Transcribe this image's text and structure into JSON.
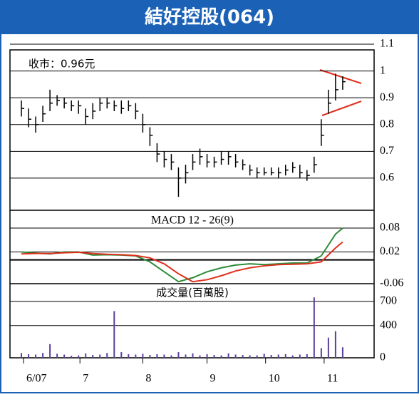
{
  "title": "結好控股(064)",
  "chart_data": [
    {
      "type": "ohlc",
      "annotation": "收市：0.96元",
      "color": "#000000",
      "x": [
        0,
        1,
        2,
        3,
        4,
        5,
        6,
        7,
        8,
        9,
        10,
        11,
        12,
        13,
        14,
        15,
        16,
        17,
        18,
        19,
        20,
        21,
        22,
        23,
        24,
        25,
        26,
        27,
        28,
        29,
        30,
        31,
        32,
        33,
        34,
        35,
        36,
        37,
        38,
        39,
        40,
        41,
        42,
        43,
        44,
        45
      ],
      "close": [
        0.86,
        0.82,
        0.8,
        0.84,
        0.88,
        0.89,
        0.88,
        0.87,
        0.87,
        0.83,
        0.85,
        0.88,
        0.88,
        0.87,
        0.86,
        0.87,
        0.85,
        0.8,
        0.76,
        0.69,
        0.67,
        0.66,
        0.6,
        0.62,
        0.66,
        0.68,
        0.66,
        0.66,
        0.67,
        0.68,
        0.66,
        0.65,
        0.63,
        0.62,
        0.62,
        0.62,
        0.62,
        0.63,
        0.64,
        0.62,
        0.61,
        0.65,
        0.76,
        0.88,
        0.93,
        0.96
      ],
      "high": [
        0.89,
        0.86,
        0.83,
        0.87,
        0.93,
        0.91,
        0.9,
        0.89,
        0.89,
        0.86,
        0.88,
        0.9,
        0.9,
        0.89,
        0.89,
        0.89,
        0.88,
        0.84,
        0.79,
        0.73,
        0.7,
        0.69,
        0.64,
        0.65,
        0.69,
        0.71,
        0.69,
        0.68,
        0.7,
        0.7,
        0.69,
        0.67,
        0.65,
        0.64,
        0.64,
        0.64,
        0.64,
        0.65,
        0.66,
        0.65,
        0.63,
        0.68,
        0.82,
        0.93,
        0.99,
        0.98
      ],
      "low": [
        0.83,
        0.79,
        0.77,
        0.81,
        0.85,
        0.87,
        0.86,
        0.85,
        0.84,
        0.8,
        0.82,
        0.85,
        0.86,
        0.85,
        0.84,
        0.85,
        0.82,
        0.77,
        0.72,
        0.66,
        0.64,
        0.63,
        0.53,
        0.58,
        0.63,
        0.65,
        0.64,
        0.64,
        0.65,
        0.65,
        0.64,
        0.63,
        0.61,
        0.6,
        0.61,
        0.61,
        0.6,
        0.61,
        0.62,
        0.6,
        0.59,
        0.62,
        0.72,
        0.84,
        0.89,
        0.93
      ],
      "xlim": [
        -1.6,
        49.4
      ],
      "ylim": [
        0.48,
        1.1
      ],
      "yticks": [
        0.6,
        0.7,
        0.8,
        0.9,
        1.0,
        1.1
      ],
      "grid": true
    },
    {
      "type": "line",
      "title": "MACD 12 - 26(9)",
      "x": [
        0,
        2,
        4,
        6,
        8,
        10,
        12,
        14,
        16,
        18,
        20,
        22,
        24,
        26,
        28,
        30,
        32,
        34,
        36,
        38,
        40,
        42,
        44,
        45
      ],
      "series": [
        {
          "color": "#2e8b3a",
          "values": [
            0.02,
            0.017,
            0.015,
            0.02,
            0.02,
            0.012,
            0.013,
            0.012,
            0.01,
            -0.005,
            -0.03,
            -0.055,
            -0.045,
            -0.03,
            -0.02,
            -0.013,
            -0.01,
            -0.012,
            -0.01,
            -0.008,
            -0.008,
            0.01,
            0.065,
            0.08
          ]
        },
        {
          "color": "#e0301e",
          "values": [
            0.015,
            0.016,
            0.016,
            0.018,
            0.019,
            0.016,
            0.014,
            0.013,
            0.011,
            0.005,
            -0.01,
            -0.035,
            -0.055,
            -0.05,
            -0.04,
            -0.028,
            -0.02,
            -0.015,
            -0.012,
            -0.011,
            -0.01,
            -0.005,
            0.03,
            0.045
          ]
        }
      ],
      "xlim": [
        -1.6,
        49.4
      ],
      "ylim": [
        -0.06,
        0.125
      ],
      "yticks": [
        0.08,
        0.02,
        -0.06
      ],
      "grid": true
    },
    {
      "type": "bar",
      "title": "成交量(百萬股)",
      "color": "#5b3f9e",
      "x": [
        0,
        1,
        2,
        3,
        4,
        5,
        6,
        7,
        8,
        9,
        10,
        11,
        12,
        13,
        14,
        15,
        16,
        17,
        18,
        19,
        20,
        21,
        22,
        23,
        24,
        25,
        26,
        27,
        28,
        29,
        30,
        31,
        32,
        33,
        34,
        35,
        36,
        37,
        38,
        39,
        40,
        41,
        42,
        43,
        44,
        45
      ],
      "values": [
        60,
        45,
        40,
        60,
        170,
        50,
        40,
        25,
        30,
        55,
        35,
        40,
        60,
        580,
        70,
        45,
        40,
        50,
        35,
        45,
        40,
        30,
        70,
        40,
        55,
        30,
        45,
        35,
        30,
        55,
        40,
        35,
        30,
        30,
        50,
        35,
        40,
        45,
        30,
        40,
        45,
        750,
        120,
        250,
        330,
        130
      ],
      "xlim": [
        -1.6,
        49.4
      ],
      "ylim": [
        0,
        920
      ],
      "yticks": [
        0,
        400,
        700
      ],
      "grid": true,
      "xticks": [
        {
          "value": 0.3,
          "label": "6/07"
        },
        {
          "value": 8.2,
          "label": "7"
        },
        {
          "value": 17,
          "label": "8"
        },
        {
          "value": 26,
          "label": "9"
        },
        {
          "value": 34.2,
          "label": "10"
        },
        {
          "value": 42.4,
          "label": "11"
        }
      ]
    }
  ]
}
